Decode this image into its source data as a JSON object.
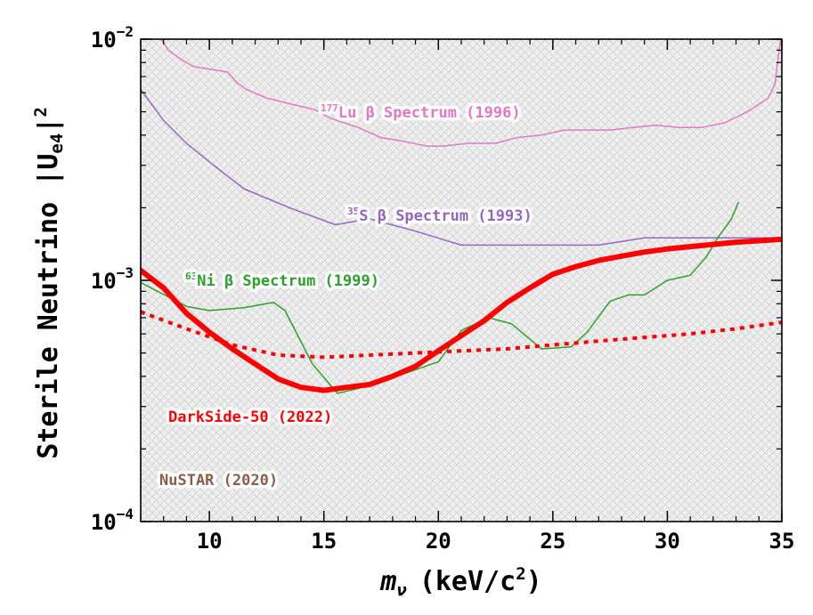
{
  "chart_data": {
    "type": "line",
    "title": "",
    "xlabel": {
      "main": "m",
      "sub": "ν",
      "rest": "(keV/c",
      "sup": "2",
      "close": ")"
    },
    "ylabel": {
      "main": "Sterile Neutrino |U",
      "sub": "e4",
      "close": "|",
      "sup": "2"
    },
    "xlim": [
      7,
      35
    ],
    "ylim": [
      0.0001,
      0.01
    ],
    "yscale": "log",
    "x_ticks": [
      10,
      15,
      20,
      25,
      30,
      35
    ],
    "x_tick_labels": [
      "10",
      "15",
      "20",
      "25",
      "30",
      "35"
    ],
    "y_ticks": [
      {
        "value": 0.01,
        "base": "10",
        "exp": "−2"
      },
      {
        "value": 0.001,
        "base": "10",
        "exp": "−3"
      },
      {
        "value": 0.0001,
        "base": "10",
        "exp": "−4"
      }
    ],
    "excluded_region": {
      "label": "NuSTAR (2020)",
      "color": "#8b5e4a"
    },
    "series": [
      {
        "label_sup": "177",
        "label": "Lu β Spectrum (1996)",
        "color": "#e377c2",
        "width": 1.5,
        "style": "solid",
        "points": [
          [
            7.9,
            0.01
          ],
          [
            8.2,
            0.009
          ],
          [
            8.8,
            0.0082
          ],
          [
            9.3,
            0.0077
          ],
          [
            10.8,
            0.0073
          ],
          [
            11.2,
            0.0066
          ],
          [
            11.6,
            0.0062
          ],
          [
            12.5,
            0.0057
          ],
          [
            13.5,
            0.0054
          ],
          [
            14.6,
            0.0051
          ],
          [
            15.3,
            0.0047
          ],
          [
            16.5,
            0.0043
          ],
          [
            17.5,
            0.0039
          ],
          [
            18.3,
            0.0038
          ],
          [
            19.5,
            0.0036
          ],
          [
            20.2,
            0.0036
          ],
          [
            21.3,
            0.0037
          ],
          [
            22.5,
            0.0037
          ],
          [
            23.4,
            0.0039
          ],
          [
            24.5,
            0.004
          ],
          [
            25.5,
            0.0042
          ],
          [
            26.5,
            0.0042
          ],
          [
            27.5,
            0.0042
          ],
          [
            28.5,
            0.0043
          ],
          [
            29.5,
            0.0044
          ],
          [
            30.5,
            0.0043
          ],
          [
            31.5,
            0.0043
          ],
          [
            32.5,
            0.0045
          ],
          [
            33.5,
            0.005
          ],
          [
            34.4,
            0.0057
          ],
          [
            34.7,
            0.0065
          ],
          [
            34.85,
            0.0085
          ],
          [
            34.95,
            0.01
          ]
        ]
      },
      {
        "label_sup": "35",
        "label": "S β Spectrum (1993)",
        "color": "#9467bd",
        "width": 1.5,
        "style": "solid",
        "points": [
          [
            7,
            0.0062
          ],
          [
            8,
            0.0046
          ],
          [
            9,
            0.0037
          ],
          [
            10,
            0.0031
          ],
          [
            11.5,
            0.0024
          ],
          [
            13.5,
            0.002
          ],
          [
            15.5,
            0.0017
          ],
          [
            17,
            0.0018
          ],
          [
            19,
            0.0016
          ],
          [
            21,
            0.0014
          ],
          [
            23,
            0.0014
          ],
          [
            25,
            0.0014
          ],
          [
            27,
            0.0014
          ],
          [
            29,
            0.0015
          ],
          [
            31,
            0.0015
          ],
          [
            33,
            0.0015
          ],
          [
            35,
            0.0015
          ]
        ]
      },
      {
        "label_sup": "63",
        "label": "Ni β Spectrum (1999)",
        "color": "#2ca02c",
        "width": 1.5,
        "style": "solid",
        "points": [
          [
            7,
            0.00098
          ],
          [
            9,
            0.00078
          ],
          [
            10,
            0.00075
          ],
          [
            11.5,
            0.00077
          ],
          [
            12.8,
            0.00081
          ],
          [
            13.3,
            0.00075
          ],
          [
            14.5,
            0.00045
          ],
          [
            15.6,
            0.00034
          ],
          [
            17.2,
            0.00037
          ],
          [
            18.5,
            0.00041
          ],
          [
            20,
            0.00046
          ],
          [
            21,
            0.00062
          ],
          [
            22.2,
            0.0007
          ],
          [
            23.2,
            0.00066
          ],
          [
            24.5,
            0.00052
          ],
          [
            25.8,
            0.00053
          ],
          [
            26.5,
            0.00061
          ],
          [
            27.5,
            0.00082
          ],
          [
            28.3,
            0.00087
          ],
          [
            29,
            0.00087
          ],
          [
            30,
            0.001
          ],
          [
            31,
            0.00105
          ],
          [
            31.7,
            0.00125
          ],
          [
            32.2,
            0.0015
          ],
          [
            32.8,
            0.0018
          ],
          [
            33.1,
            0.0021
          ]
        ]
      },
      {
        "label": "DarkSide-50 (2022)",
        "color": "#ff0000",
        "width": 6,
        "style": "solid",
        "points": [
          [
            7,
            0.0011
          ],
          [
            8,
            0.00093
          ],
          [
            9,
            0.00073
          ],
          [
            10,
            0.00061
          ],
          [
            11,
            0.00052
          ],
          [
            12,
            0.00045
          ],
          [
            13,
            0.00039
          ],
          [
            14,
            0.00036
          ],
          [
            15,
            0.00035
          ],
          [
            16,
            0.00036
          ],
          [
            17,
            0.00037
          ],
          [
            18,
            0.0004
          ],
          [
            19,
            0.00044
          ],
          [
            20,
            0.00051
          ],
          [
            21,
            0.00059
          ],
          [
            22,
            0.00068
          ],
          [
            23,
            0.00081
          ],
          [
            24,
            0.00093
          ],
          [
            25,
            0.00106
          ],
          [
            26,
            0.00114
          ],
          [
            27,
            0.00121
          ],
          [
            28,
            0.00126
          ],
          [
            29,
            0.00131
          ],
          [
            30,
            0.00135
          ],
          [
            31,
            0.00138
          ],
          [
            32,
            0.00141
          ],
          [
            33,
            0.00144
          ],
          [
            34,
            0.00146
          ],
          [
            35,
            0.00148
          ]
        ]
      },
      {
        "label": "",
        "color": "#ff0000",
        "width": 4,
        "style": "dotted",
        "points": [
          [
            7,
            0.00074
          ],
          [
            9,
            0.00063
          ],
          [
            11,
            0.00054
          ],
          [
            13,
            0.00049
          ],
          [
            15,
            0.00048
          ],
          [
            17,
            0.00049
          ],
          [
            19,
            0.0005
          ],
          [
            21,
            0.00051
          ],
          [
            23,
            0.00052
          ],
          [
            25,
            0.00054
          ],
          [
            27,
            0.00056
          ],
          [
            29,
            0.00058
          ],
          [
            31,
            0.0006
          ],
          [
            33,
            0.00063
          ],
          [
            35,
            0.00067
          ]
        ]
      }
    ]
  }
}
